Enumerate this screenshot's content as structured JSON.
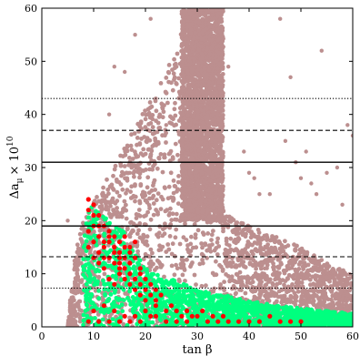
{
  "chart_data": {
    "type": "scatter",
    "title": "",
    "xlabel": "tan β",
    "ylabel_main": "Δa",
    "ylabel_sub": "μ",
    "ylabel_suffix": "× 10",
    "ylabel_sup": "10",
    "xlim": [
      0,
      60
    ],
    "ylim": [
      0,
      60
    ],
    "xticks": [
      "0",
      "10",
      "20",
      "30",
      "40",
      "50",
      "60"
    ],
    "yticks": [
      "0",
      "10",
      "20",
      "30",
      "40",
      "50",
      "60"
    ],
    "grid": false,
    "legend": "none",
    "colors": {
      "brown": "#bc8f8f",
      "green": "#00ff7f",
      "red": "#ff0000",
      "line": "#000000"
    },
    "hlines": [
      {
        "y": 43,
        "style": "dotted"
      },
      {
        "y": 37,
        "style": "dashed"
      },
      {
        "y": 31,
        "style": "solid"
      },
      {
        "y": 19,
        "style": "solid"
      },
      {
        "y": 13.2,
        "style": "dashed"
      },
      {
        "y": 7.3,
        "style": "dotted"
      }
    ],
    "series": [
      {
        "color": "brown",
        "regions": [
          {
            "x": [
              5,
              60
            ],
            "y_min": 0,
            "y_upper": [
              [
                5,
                0
              ],
              [
                6,
                11
              ],
              [
                7,
                16
              ],
              [
                8,
                20
              ],
              [
                9,
                22
              ],
              [
                10,
                24
              ],
              [
                12,
                27
              ],
              [
                14,
                30
              ],
              [
                16,
                34
              ],
              [
                18,
                38
              ],
              [
                20,
                41
              ],
              [
                22,
                45
              ],
              [
                24,
                49
              ],
              [
                26,
                53
              ],
              [
                28,
                58
              ],
              [
                30,
                60
              ],
              [
                35,
                60
              ],
              [
                35,
                22
              ],
              [
                38,
                20
              ],
              [
                40,
                19
              ],
              [
                45,
                17
              ],
              [
                50,
                15
              ],
              [
                55,
                12
              ],
              [
                60,
                10
              ]
            ]
          },
          {
            "x": [
              27,
              35
            ],
            "y_min": 20,
            "y_max": 60
          }
        ],
        "outliers": [
          [
            5,
            20
          ],
          [
            12,
            5
          ],
          [
            13,
            40
          ],
          [
            14,
            49
          ],
          [
            16,
            48
          ],
          [
            17,
            29
          ],
          [
            18,
            55
          ],
          [
            21,
            58
          ],
          [
            22,
            43
          ],
          [
            24,
            44
          ],
          [
            24,
            38
          ],
          [
            27,
            55
          ],
          [
            28,
            44
          ],
          [
            29,
            57
          ],
          [
            33,
            53
          ],
          [
            39,
            33
          ],
          [
            40,
            29
          ],
          [
            41,
            28
          ],
          [
            42,
            25
          ],
          [
            44,
            25
          ],
          [
            46,
            58
          ],
          [
            48,
            47
          ],
          [
            49,
            31
          ],
          [
            50,
            28
          ],
          [
            51,
            33
          ],
          [
            52,
            27
          ],
          [
            53,
            25
          ],
          [
            54,
            52
          ],
          [
            55,
            29
          ],
          [
            57,
            30
          ],
          [
            58,
            23
          ],
          [
            59,
            38
          ],
          [
            60,
            36
          ],
          [
            43,
            11
          ],
          [
            47,
            35
          ],
          [
            36,
            49
          ],
          [
            15,
            9
          ],
          [
            31,
            58
          ],
          [
            26,
            49
          ]
        ]
      },
      {
        "color": "green",
        "regions": [
          {
            "x": [
              8,
              60
            ],
            "y_min": 0,
            "y_upper": [
              [
                8,
                16
              ],
              [
                9,
                22
              ],
              [
                10,
                24
              ],
              [
                11,
                22
              ],
              [
                12,
                21
              ],
              [
                14,
                19
              ],
              [
                16,
                18
              ],
              [
                18,
                14
              ],
              [
                20,
                11
              ],
              [
                22,
                10
              ],
              [
                25,
                9
              ],
              [
                30,
                7
              ],
              [
                35,
                6
              ],
              [
                40,
                5
              ],
              [
                45,
                4
              ],
              [
                50,
                3.5
              ],
              [
                55,
                3
              ],
              [
                60,
                2.5
              ]
            ]
          }
        ]
      },
      {
        "color": "red",
        "points": [
          [
            9,
            24
          ],
          [
            9,
            22
          ],
          [
            10,
            23
          ],
          [
            10,
            21
          ],
          [
            10,
            19
          ],
          [
            9,
            18
          ],
          [
            11,
            19
          ],
          [
            11,
            17
          ],
          [
            10,
            16
          ],
          [
            9,
            15
          ],
          [
            12,
            16
          ],
          [
            12,
            15
          ],
          [
            13,
            16
          ],
          [
            13,
            18
          ],
          [
            14,
            17
          ],
          [
            14,
            15
          ],
          [
            15,
            16
          ],
          [
            15,
            14
          ],
          [
            16,
            17
          ],
          [
            16,
            15
          ],
          [
            17,
            14
          ],
          [
            18,
            16
          ],
          [
            13,
            13
          ],
          [
            14,
            12
          ],
          [
            15,
            11
          ],
          [
            16,
            13
          ],
          [
            17,
            12
          ],
          [
            17,
            10
          ],
          [
            18,
            9
          ],
          [
            19,
            8
          ],
          [
            19,
            10
          ],
          [
            20,
            7
          ],
          [
            21,
            6
          ],
          [
            22,
            5
          ],
          [
            12,
            11
          ],
          [
            13,
            9
          ],
          [
            14,
            8
          ],
          [
            15,
            10
          ],
          [
            16,
            9
          ],
          [
            11,
            12
          ],
          [
            11,
            14
          ],
          [
            12,
            13
          ],
          [
            10,
            13
          ],
          [
            15,
            13
          ],
          [
            16,
            11
          ],
          [
            17,
            8
          ],
          [
            18,
            7
          ],
          [
            19,
            6
          ],
          [
            20,
            5
          ],
          [
            22,
            4
          ],
          [
            24,
            3
          ],
          [
            25,
            4
          ],
          [
            26,
            3
          ],
          [
            27,
            2
          ],
          [
            28,
            3
          ],
          [
            29,
            2
          ],
          [
            30,
            2
          ],
          [
            31,
            3
          ],
          [
            32,
            1
          ],
          [
            33,
            2
          ],
          [
            34,
            1
          ],
          [
            35,
            2
          ],
          [
            36,
            1
          ],
          [
            38,
            1
          ],
          [
            40,
            1
          ],
          [
            42,
            1
          ],
          [
            44,
            2
          ],
          [
            46,
            1
          ],
          [
            48,
            1
          ],
          [
            50,
            1
          ],
          [
            21,
            2
          ],
          [
            19,
            1
          ],
          [
            17,
            1
          ],
          [
            15,
            1
          ],
          [
            13,
            1
          ],
          [
            11,
            1
          ],
          [
            9,
            1
          ],
          [
            10,
            3
          ],
          [
            12,
            4
          ],
          [
            14,
            3
          ],
          [
            16,
            2
          ],
          [
            18,
            2
          ],
          [
            20,
            3
          ],
          [
            22,
            2
          ],
          [
            24,
            1
          ],
          [
            26,
            1
          ],
          [
            28,
            1
          ],
          [
            11,
            21
          ],
          [
            12,
            19
          ],
          [
            13,
            17
          ],
          [
            14,
            14
          ],
          [
            15,
            12
          ],
          [
            17,
            15
          ],
          [
            18,
            13
          ],
          [
            19,
            11
          ],
          [
            20,
            9
          ],
          [
            21,
            8
          ],
          [
            22,
            7
          ],
          [
            23,
            6
          ]
        ]
      }
    ]
  }
}
